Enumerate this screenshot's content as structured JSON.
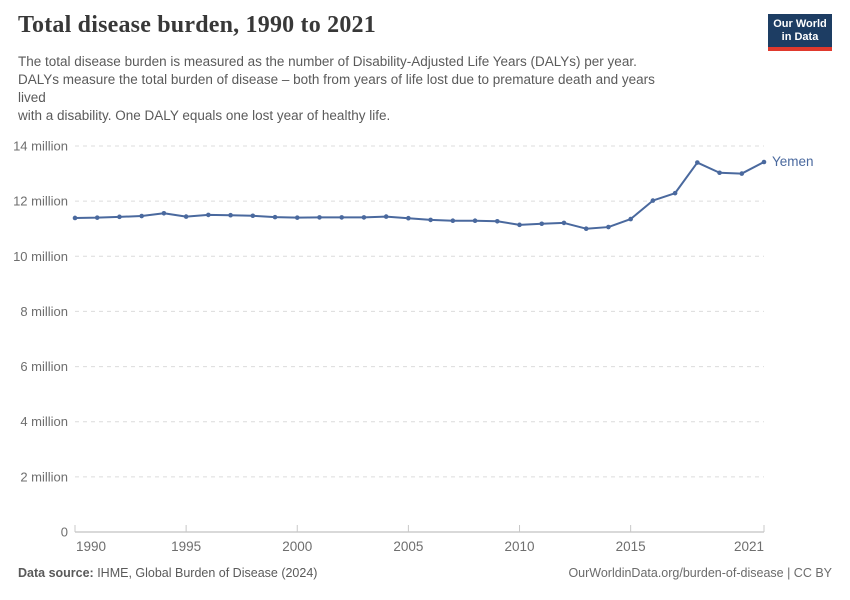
{
  "header": {
    "title": "Total disease burden, 1990 to 2021",
    "subtitle_lines": [
      "The total disease burden is measured as the number of Disability-Adjusted Life Years (DALYs) per year.",
      "DALYs measure the total burden of disease – both from years of life lost due to premature death and years",
      "lived",
      "with a disability. One DALY equals one lost year of healthy life."
    ]
  },
  "logo": {
    "line1": "Our World",
    "line2": "in Data",
    "bg_color": "#1d3d63",
    "bar_color": "#e0392d"
  },
  "chart_data": {
    "type": "line",
    "title": "Total disease burden, 1990 to 2021",
    "unit": "million DALYs",
    "series": [
      {
        "name": "Yemen",
        "x": [
          1990,
          1991,
          1992,
          1993,
          1994,
          1995,
          1996,
          1997,
          1998,
          1999,
          2000,
          2001,
          2002,
          2003,
          2004,
          2005,
          2006,
          2007,
          2008,
          2009,
          2010,
          2011,
          2012,
          2013,
          2014,
          2015,
          2016,
          2017,
          2018,
          2019,
          2020,
          2021
        ],
        "values_million": [
          11.39,
          11.4,
          11.43,
          11.46,
          11.56,
          11.44,
          11.5,
          11.49,
          11.47,
          11.42,
          11.4,
          11.41,
          11.41,
          11.41,
          11.44,
          11.38,
          11.32,
          11.29,
          11.29,
          11.27,
          11.14,
          11.18,
          11.21,
          11.0,
          11.06,
          11.35,
          12.02,
          12.29,
          13.4,
          13.03,
          13.0,
          13.42
        ]
      }
    ],
    "xlim": [
      1990,
      2021
    ],
    "ylim": [
      0,
      14
    ],
    "grid": "dashed horizontal",
    "legend_position": "end-of-line label",
    "yticks": [
      {
        "v": 0,
        "label": "0"
      },
      {
        "v": 2,
        "label": "2 million"
      },
      {
        "v": 4,
        "label": "4 million"
      },
      {
        "v": 6,
        "label": "6 million"
      },
      {
        "v": 8,
        "label": "8 million"
      },
      {
        "v": 10,
        "label": "10 million"
      },
      {
        "v": 12,
        "label": "12 million"
      },
      {
        "v": 14,
        "label": "14 million"
      }
    ],
    "xticks": [
      {
        "v": 1990,
        "label": "1990",
        "anchor": "start"
      },
      {
        "v": 1995,
        "label": "1995",
        "anchor": "middle"
      },
      {
        "v": 2000,
        "label": "2000",
        "anchor": "middle"
      },
      {
        "v": 2005,
        "label": "2005",
        "anchor": "middle"
      },
      {
        "v": 2010,
        "label": "2010",
        "anchor": "middle"
      },
      {
        "v": 2015,
        "label": "2015",
        "anchor": "middle"
      },
      {
        "v": 2021,
        "label": "2021",
        "anchor": "end"
      }
    ],
    "colors": {
      "line": "#4a699e",
      "series_label": "#4a699e",
      "grid": "#dcdcdc",
      "axis": "#b3b3b3",
      "tick": "#c8c8c8",
      "tick_label": "#6e6e6e"
    }
  },
  "footer": {
    "source_label": "Data source:",
    "source_text": " IHME, Global Burden of Disease (2024)",
    "right_text": "OurWorldinData.org/burden-of-disease | CC BY"
  }
}
